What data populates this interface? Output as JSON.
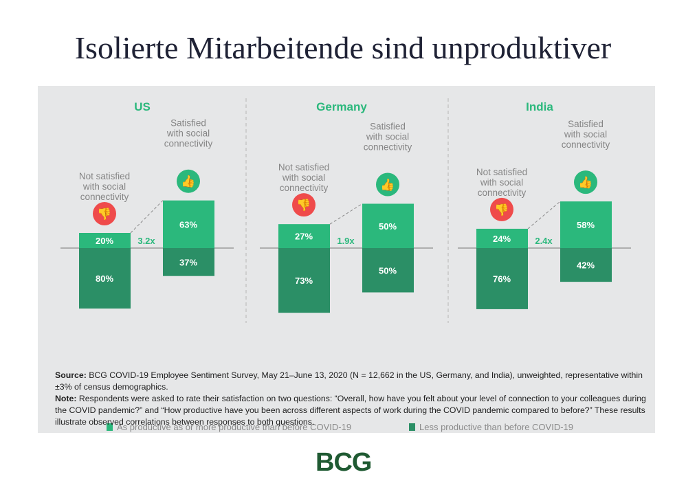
{
  "title": "Isolierte Mitarbeitende sind unproduktiver",
  "colors": {
    "productive": "#2bb87c",
    "less_productive": "#2b8f66",
    "thumbs_down": "#ef4b4b",
    "title_green": "#2bb87c"
  },
  "chart_data": {
    "type": "bar",
    "panels": [
      {
        "country": "US",
        "categories": [
          "Not satisfied with social connectivity",
          "Satisfied with social connectivity"
        ],
        "productive": [
          20,
          63
        ],
        "less_productive": [
          80,
          37
        ],
        "ratio": "3.2x",
        "labels": {
          "p": [
            "20%",
            "63%"
          ],
          "l": [
            "80%",
            "37%"
          ]
        }
      },
      {
        "country": "Germany",
        "categories": [
          "Not satisfied with social connectivity",
          "Satisfied with social connectivity"
        ],
        "productive": [
          27,
          50
        ],
        "less_productive": [
          73,
          50
        ],
        "ratio": "1.9x",
        "labels": {
          "p": [
            "27%",
            "50%"
          ],
          "l": [
            "73%",
            "50%"
          ]
        }
      },
      {
        "country": "India",
        "categories": [
          "Not satisfied with social connectivity",
          "Satisfied with social connectivity"
        ],
        "productive": [
          24,
          58
        ],
        "less_productive": [
          76,
          42
        ],
        "ratio": "2.4x",
        "labels": {
          "p": [
            "24%",
            "58%"
          ],
          "l": [
            "76%",
            "42%"
          ]
        }
      }
    ],
    "cat_lines": [
      [
        "Not satisfied",
        "with social",
        "connectivity"
      ],
      [
        "Satisfied",
        "with social",
        "connectivity"
      ]
    ],
    "icons": [
      "thumbs-down-icon",
      "thumbs-up-icon"
    ],
    "legend": [
      "As productive as or more productive than before COVID-19",
      "Less productive than before COVID-19"
    ],
    "legend_position": "bottom"
  },
  "source_label": "Source:",
  "source_text": " BCG COVID-19 Employee Sentiment Survey, May 21–June 13, 2020 (N = 12,662 in the US, Germany, and India), unweighted, representative within ±3% of census demographics.",
  "note_label": "Note:",
  "note_text": " Respondents were asked to rate their satisfaction on two questions: “Overall, how have you felt about your level of connection to your colleagues during the COVID pandemic?” and “How productive have you been across different aspects of work during the COVID pandemic compared to before?” These results illustrate observed correlations between responses to both questions.",
  "logo": "BCG"
}
